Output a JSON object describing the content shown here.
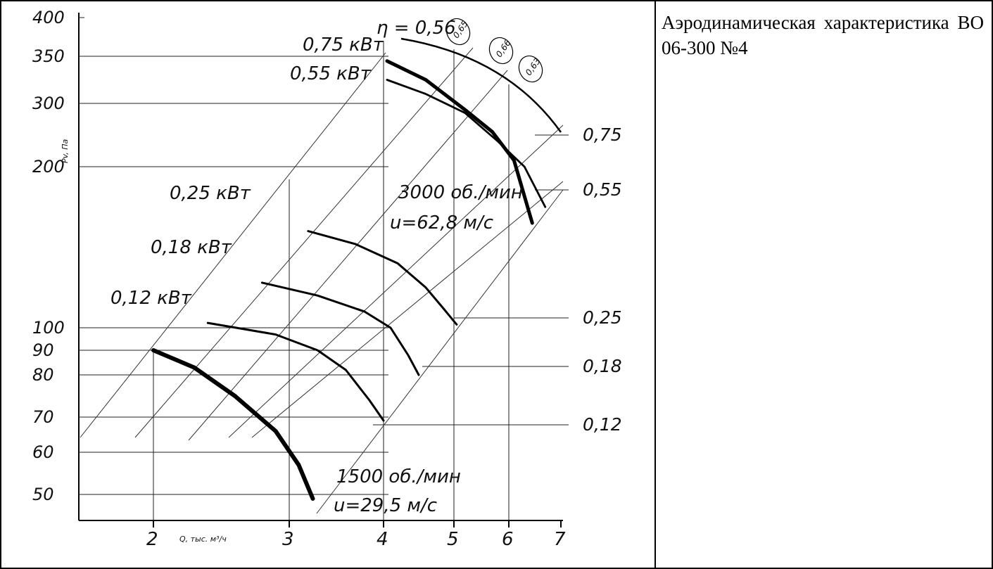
{
  "description": "Аэродинамическая характеристика ВО 06-300 №4",
  "chart_data": {
    "type": "line",
    "title": "",
    "xlabel": "Q, тыс. м³/ч",
    "ylabel": "Pv, Па",
    "x_ticks": [
      2,
      3,
      4,
      5,
      6,
      7
    ],
    "y_ticks": [
      50,
      60,
      70,
      80,
      90,
      100,
      200,
      300,
      350,
      400
    ],
    "power_scale_labels": [
      "0,75",
      "0,55",
      "0,25",
      "0,18",
      "0,12"
    ],
    "efficiency_label": "η = 0,56",
    "efficiency_values": [
      "0,65",
      "0,66",
      "0,63"
    ],
    "speed_labels": [
      {
        "rpm": "3000 об./мин",
        "u": "u=62,8 м/с"
      },
      {
        "rpm": "1500 об./мин",
        "u": "u=29,5 м/с"
      }
    ],
    "series": [
      {
        "name": "0,75 кВт",
        "points": [
          [
            4.05,
            345
          ],
          [
            4.6,
            325
          ],
          [
            5.2,
            290
          ],
          [
            5.7,
            255
          ],
          [
            6.1,
            210
          ],
          [
            6.45,
            165
          ]
        ]
      },
      {
        "name": "0,55 кВт",
        "points": [
          [
            4.05,
            325
          ],
          [
            4.6,
            310
          ],
          [
            5.2,
            285
          ],
          [
            5.8,
            240
          ],
          [
            6.3,
            200
          ],
          [
            6.7,
            175
          ]
        ]
      },
      {
        "name": "0,25 кВт",
        "points": [
          [
            3.2,
            160
          ],
          [
            3.7,
            152
          ],
          [
            4.2,
            140
          ],
          [
            4.6,
            125
          ],
          [
            4.85,
            112
          ],
          [
            5.05,
            102
          ]
        ]
      },
      {
        "name": "0,18 кВт",
        "points": [
          [
            2.8,
            128
          ],
          [
            3.3,
            120
          ],
          [
            3.8,
            110
          ],
          [
            4.1,
            100
          ],
          [
            4.35,
            88
          ],
          [
            4.5,
            80
          ]
        ]
      },
      {
        "name": "0,12 кВт",
        "points": [
          [
            2.4,
            103
          ],
          [
            2.9,
            97
          ],
          [
            3.3,
            90
          ],
          [
            3.6,
            82
          ],
          [
            3.85,
            74
          ],
          [
            4.0,
            69
          ]
        ]
      },
      {
        "name": "1500 об./мин",
        "points": [
          [
            2.0,
            90
          ],
          [
            2.3,
            83
          ],
          [
            2.6,
            75
          ],
          [
            2.9,
            66
          ],
          [
            3.1,
            57
          ],
          [
            3.25,
            49
          ]
        ]
      }
    ]
  }
}
